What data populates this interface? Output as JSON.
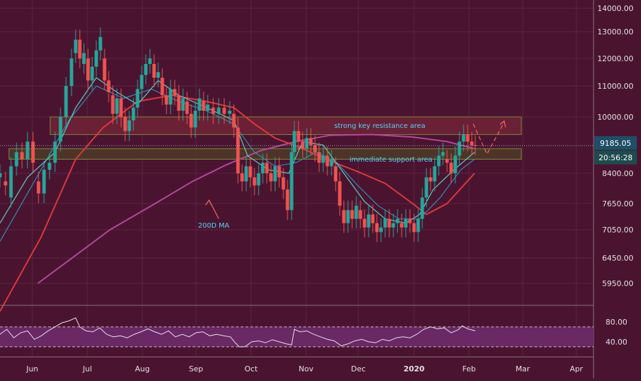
{
  "chart_data": {
    "type": "candlestick",
    "x_ticks": [
      "Jun",
      "Jul",
      "Aug",
      "Sep",
      "Oct",
      "Nov",
      "Dec",
      "2020",
      "Feb",
      "Mar",
      "Apr"
    ],
    "y_ticks": [
      "14000.00",
      "13000.00",
      "12000.00",
      "11000.00",
      "10000.00",
      "8400.00",
      "7650.00",
      "7050.00",
      "6450.00",
      "5950.00"
    ],
    "price_label": "9185.05",
    "countdown_label": "20:56:28",
    "rsi_ticks": [
      "80.00",
      "40.00"
    ],
    "annotations": {
      "resistance": "strong key resistance area",
      "support": "immediate support area",
      "ma200": "200D MA"
    },
    "resistance_zone": [
      9500,
      10000
    ],
    "support_zone": [
      8800,
      9100
    ],
    "last_price": 9185.05,
    "ma200": [
      [
        55,
        5950
      ],
      [
        100,
        6400
      ],
      [
        160,
        7050
      ],
      [
        220,
        7600
      ],
      [
        280,
        8200
      ],
      [
        330,
        8650
      ],
      [
        380,
        9050
      ],
      [
        430,
        9300
      ],
      [
        480,
        9480
      ],
      [
        540,
        9500
      ],
      [
        600,
        9430
      ],
      [
        650,
        9300
      ],
      [
        690,
        9100
      ]
    ],
    "ma50": [
      [
        0,
        5400
      ],
      [
        60,
        6900
      ],
      [
        110,
        8800
      ],
      [
        150,
        9700
      ],
      [
        200,
        10500
      ],
      [
        250,
        10700
      ],
      [
        300,
        10500
      ],
      [
        340,
        10300
      ],
      [
        370,
        9800
      ],
      [
        400,
        9400
      ],
      [
        440,
        9100
      ],
      [
        480,
        8750
      ],
      [
        520,
        8450
      ],
      [
        560,
        8150
      ],
      [
        600,
        7650
      ],
      [
        620,
        7400
      ],
      [
        650,
        7650
      ],
      [
        690,
        8400
      ]
    ],
    "ma_fast": [
      [
        0,
        7200
      ],
      [
        40,
        8300
      ],
      [
        80,
        9000
      ],
      [
        110,
        10300
      ],
      [
        140,
        11300
      ],
      [
        170,
        10800
      ],
      [
        200,
        10400
      ],
      [
        230,
        11200
      ],
      [
        260,
        10700
      ],
      [
        300,
        10300
      ],
      [
        340,
        9900
      ],
      [
        360,
        8900
      ],
      [
        390,
        8500
      ],
      [
        420,
        8400
      ],
      [
        440,
        9300
      ],
      [
        470,
        9200
      ],
      [
        500,
        8400
      ],
      [
        530,
        7700
      ],
      [
        560,
        7300
      ],
      [
        590,
        7200
      ],
      [
        610,
        7400
      ],
      [
        630,
        8000
      ],
      [
        660,
        8500
      ],
      [
        690,
        9000
      ]
    ],
    "ma_mid": [
      [
        0,
        6800
      ],
      [
        50,
        8200
      ],
      [
        100,
        9900
      ],
      [
        140,
        11000
      ],
      [
        180,
        10600
      ],
      [
        220,
        10900
      ],
      [
        260,
        10500
      ],
      [
        300,
        10200
      ],
      [
        340,
        9800
      ],
      [
        370,
        9000
      ],
      [
        400,
        8600
      ],
      [
        430,
        8700
      ],
      [
        460,
        9000
      ],
      [
        490,
        8700
      ],
      [
        520,
        8100
      ],
      [
        550,
        7600
      ],
      [
        580,
        7300
      ],
      [
        610,
        7300
      ],
      [
        640,
        7800
      ],
      [
        670,
        8500
      ],
      [
        690,
        8800
      ]
    ],
    "candles": [
      [
        0,
        8300,
        8400
      ],
      [
        8,
        8200,
        8100
      ],
      [
        16,
        7800,
        8600
      ],
      [
        24,
        8600,
        9000
      ],
      [
        32,
        9000,
        8800
      ],
      [
        40,
        8800,
        9300
      ],
      [
        48,
        9300,
        8700
      ],
      [
        56,
        8200,
        7900
      ],
      [
        64,
        7900,
        8500
      ],
      [
        72,
        8500,
        8700
      ],
      [
        80,
        8700,
        9300
      ],
      [
        88,
        9300,
        10000
      ],
      [
        96,
        10000,
        11000
      ],
      [
        104,
        11000,
        12000
      ],
      [
        110,
        12200,
        12700
      ],
      [
        116,
        12700,
        12000
      ],
      [
        122,
        11800,
        12200
      ],
      [
        128,
        12000,
        11200
      ],
      [
        134,
        11200,
        11700
      ],
      [
        140,
        11700,
        12300
      ],
      [
        146,
        12300,
        12800
      ],
      [
        152,
        12000,
        11200
      ],
      [
        158,
        11200,
        10800
      ],
      [
        164,
        10700,
        10100
      ],
      [
        170,
        10100,
        10600
      ],
      [
        176,
        10600,
        10000
      ],
      [
        182,
        10000,
        9600
      ],
      [
        188,
        9600,
        9900
      ],
      [
        194,
        9900,
        10300
      ],
      [
        200,
        10300,
        10900
      ],
      [
        206,
        10900,
        11400
      ],
      [
        212,
        11400,
        11800
      ],
      [
        218,
        11800,
        12000
      ],
      [
        224,
        11800,
        11300
      ],
      [
        230,
        11300,
        11500
      ],
      [
        236,
        11300,
        10700
      ],
      [
        242,
        10700,
        10400
      ],
      [
        248,
        10400,
        10900
      ],
      [
        254,
        10900,
        10700
      ],
      [
        260,
        10700,
        10200
      ],
      [
        266,
        10200,
        10600
      ],
      [
        272,
        10500,
        10100
      ],
      [
        278,
        10100,
        9700
      ],
      [
        284,
        9700,
        10200
      ],
      [
        290,
        10200,
        10600
      ],
      [
        296,
        10500,
        10200
      ],
      [
        302,
        10200,
        10400
      ],
      [
        310,
        10300,
        10100
      ],
      [
        318,
        10100,
        10300
      ],
      [
        326,
        10300,
        10100
      ],
      [
        334,
        10100,
        10200
      ],
      [
        340,
        10100,
        9700
      ],
      [
        346,
        9700,
        8400
      ],
      [
        352,
        8400,
        8200
      ],
      [
        358,
        8200,
        8600
      ],
      [
        364,
        8600,
        8300
      ],
      [
        370,
        8300,
        8100
      ],
      [
        376,
        8100,
        8400
      ],
      [
        382,
        8400,
        8700
      ],
      [
        388,
        8700,
        8400
      ],
      [
        394,
        8400,
        8200
      ],
      [
        400,
        8200,
        8600
      ],
      [
        406,
        8600,
        8300
      ],
      [
        412,
        8300,
        8000
      ],
      [
        418,
        8000,
        7500
      ],
      [
        424,
        7500,
        9000
      ],
      [
        428,
        9000,
        9600
      ],
      [
        434,
        9600,
        9300
      ],
      [
        440,
        9300,
        9100
      ],
      [
        446,
        9100,
        9400
      ],
      [
        452,
        9400,
        9200
      ],
      [
        458,
        9200,
        9000
      ],
      [
        464,
        9000,
        8700
      ],
      [
        470,
        8700,
        8900
      ],
      [
        476,
        8900,
        8600
      ],
      [
        482,
        8600,
        8800
      ],
      [
        488,
        8600,
        8200
      ],
      [
        494,
        8200,
        7600
      ],
      [
        500,
        7500,
        7200
      ],
      [
        506,
        7200,
        7500
      ],
      [
        512,
        7500,
        7300
      ],
      [
        518,
        7300,
        7600
      ],
      [
        524,
        7500,
        7300
      ],
      [
        530,
        7300,
        7100
      ],
      [
        536,
        7100,
        7400
      ],
      [
        542,
        7400,
        7200
      ],
      [
        548,
        7200,
        7000
      ],
      [
        554,
        7000,
        7100
      ],
      [
        560,
        7100,
        7300
      ],
      [
        566,
        7300,
        7100
      ],
      [
        572,
        7100,
        7200
      ],
      [
        578,
        7200,
        7300
      ],
      [
        584,
        7200,
        7100
      ],
      [
        590,
        7100,
        7300
      ],
      [
        596,
        7300,
        7200
      ],
      [
        602,
        7200,
        7000
      ],
      [
        608,
        7000,
        7300
      ],
      [
        614,
        7300,
        7800
      ],
      [
        620,
        7800,
        8300
      ],
      [
        626,
        8300,
        8200
      ],
      [
        632,
        8200,
        8600
      ],
      [
        638,
        8600,
        8900
      ],
      [
        644,
        8900,
        9000
      ],
      [
        650,
        8800,
        8700
      ],
      [
        656,
        8700,
        8400
      ],
      [
        662,
        8400,
        8900
      ],
      [
        668,
        8900,
        9300
      ],
      [
        674,
        9300,
        9500
      ],
      [
        680,
        9500,
        9300
      ],
      [
        686,
        9300,
        9200
      ],
      [
        691,
        9200,
        9185
      ]
    ],
    "rsi": [
      [
        0,
        55
      ],
      [
        10,
        65
      ],
      [
        20,
        48
      ],
      [
        30,
        58
      ],
      [
        40,
        62
      ],
      [
        50,
        45
      ],
      [
        60,
        52
      ],
      [
        70,
        62
      ],
      [
        80,
        70
      ],
      [
        90,
        78
      ],
      [
        100,
        82
      ],
      [
        110,
        88
      ],
      [
        116,
        70
      ],
      [
        125,
        62
      ],
      [
        135,
        60
      ],
      [
        145,
        68
      ],
      [
        155,
        55
      ],
      [
        165,
        50
      ],
      [
        175,
        52
      ],
      [
        185,
        48
      ],
      [
        195,
        55
      ],
      [
        205,
        60
      ],
      [
        215,
        66
      ],
      [
        225,
        60
      ],
      [
        235,
        55
      ],
      [
        245,
        62
      ],
      [
        255,
        50
      ],
      [
        265,
        55
      ],
      [
        275,
        50
      ],
      [
        285,
        58
      ],
      [
        295,
        60
      ],
      [
        305,
        52
      ],
      [
        315,
        55
      ],
      [
        325,
        52
      ],
      [
        335,
        50
      ],
      [
        342,
        38
      ],
      [
        348,
        30
      ],
      [
        356,
        30
      ],
      [
        366,
        40
      ],
      [
        376,
        42
      ],
      [
        386,
        38
      ],
      [
        396,
        44
      ],
      [
        406,
        40
      ],
      [
        416,
        36
      ],
      [
        424,
        34
      ],
      [
        428,
        65
      ],
      [
        436,
        60
      ],
      [
        446,
        62
      ],
      [
        456,
        55
      ],
      [
        466,
        50
      ],
      [
        476,
        45
      ],
      [
        486,
        42
      ],
      [
        496,
        32
      ],
      [
        506,
        36
      ],
      [
        516,
        42
      ],
      [
        526,
        45
      ],
      [
        536,
        40
      ],
      [
        546,
        38
      ],
      [
        556,
        45
      ],
      [
        566,
        42
      ],
      [
        576,
        48
      ],
      [
        586,
        50
      ],
      [
        596,
        48
      ],
      [
        606,
        55
      ],
      [
        616,
        65
      ],
      [
        626,
        70
      ],
      [
        636,
        66
      ],
      [
        646,
        68
      ],
      [
        656,
        58
      ],
      [
        666,
        64
      ],
      [
        672,
        72
      ],
      [
        680,
        66
      ],
      [
        691,
        62
      ]
    ]
  },
  "colors": {
    "background": "#4a1430",
    "grid": "#5c2540",
    "up": "#26a69a",
    "down": "#ef5350",
    "ma200": "#b3489e",
    "ma50": "#e0383a",
    "ma_fast": "#55d6c7",
    "ma_mid": "#2f8fb5",
    "annotation": "#4fd6ff",
    "arrow": "#ff6a5e",
    "zone_border": "#7d8a3a",
    "price_tag": "#1e4f66",
    "countdown_tag": "#1d4b4e",
    "rsi_line": "#e6e6e6",
    "rsi_band": "#6e2a6b",
    "axis_text": "#e3e3e3"
  }
}
